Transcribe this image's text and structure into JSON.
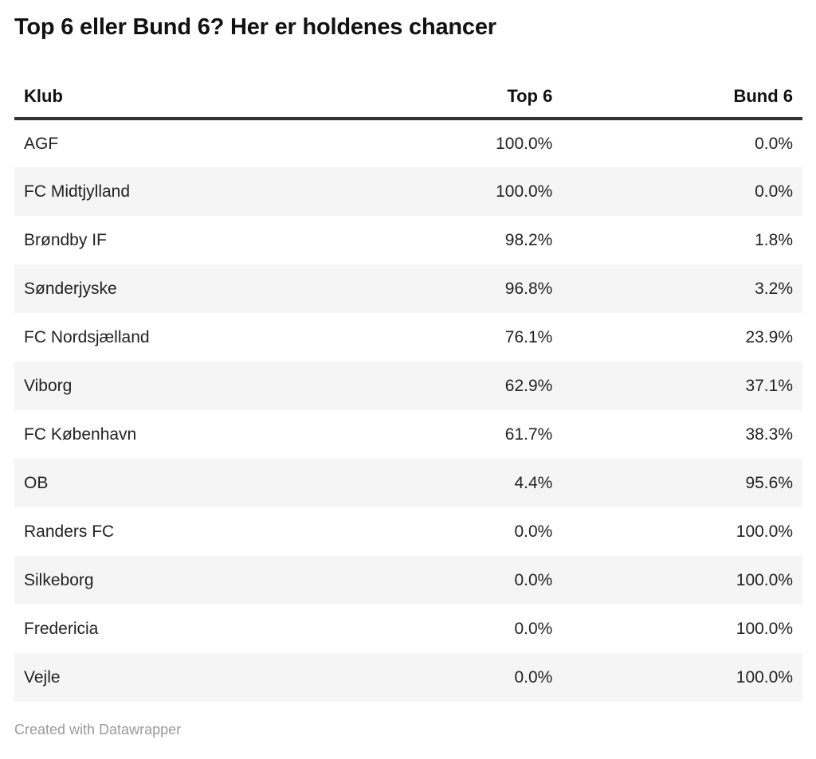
{
  "title": "Top 6 eller Bund 6? Her er holdenes chancer",
  "table": {
    "columns": [
      "Klub",
      "Top 6",
      "Bund 6"
    ],
    "rows": [
      {
        "club": "AGF",
        "top6": "100.0%",
        "bund6": "0.0%"
      },
      {
        "club": "FC Midtjylland",
        "top6": "100.0%",
        "bund6": "0.0%"
      },
      {
        "club": "Brøndby IF",
        "top6": "98.2%",
        "bund6": "1.8%"
      },
      {
        "club": "Sønderjyske",
        "top6": "96.8%",
        "bund6": "3.2%"
      },
      {
        "club": "FC Nordsjælland",
        "top6": "76.1%",
        "bund6": "23.9%"
      },
      {
        "club": "Viborg",
        "top6": "62.9%",
        "bund6": "37.1%"
      },
      {
        "club": "FC København",
        "top6": "61.7%",
        "bund6": "38.3%"
      },
      {
        "club": "OB",
        "top6": "4.4%",
        "bund6": "95.6%"
      },
      {
        "club": "Randers FC",
        "top6": "0.0%",
        "bund6": "100.0%"
      },
      {
        "club": "Silkeborg",
        "top6": "0.0%",
        "bund6": "100.0%"
      },
      {
        "club": "Fredericia",
        "top6": "0.0%",
        "bund6": "100.0%"
      },
      {
        "club": "Vejle",
        "top6": "0.0%",
        "bund6": "100.0%"
      }
    ]
  },
  "footer": {
    "attribution": "Created with Datawrapper"
  },
  "colors": {
    "header_rule": "#333333",
    "row_stripe": "#f5f5f5",
    "body_text": "#222222",
    "title_text": "#111111",
    "footer_text": "#9a9a9a"
  },
  "chart_data": {
    "type": "table",
    "title": "Top 6 eller Bund 6? Her er holdenes chancer",
    "columns": [
      "Klub",
      "Top 6",
      "Bund 6"
    ],
    "rows": [
      [
        "AGF",
        "100.0%",
        "0.0%"
      ],
      [
        "FC Midtjylland",
        "100.0%",
        "0.0%"
      ],
      [
        "Brøndby IF",
        "98.2%",
        "1.8%"
      ],
      [
        "Sønderjyske",
        "96.8%",
        "3.2%"
      ],
      [
        "FC Nordsjælland",
        "76.1%",
        "23.9%"
      ],
      [
        "Viborg",
        "62.9%",
        "37.1%"
      ],
      [
        "FC København",
        "61.7%",
        "38.3%"
      ],
      [
        "OB",
        "4.4%",
        "95.6%"
      ],
      [
        "Randers FC",
        "0.0%",
        "100.0%"
      ],
      [
        "Silkeborg",
        "0.0%",
        "100.0%"
      ],
      [
        "Fredericia",
        "0.0%",
        "100.0%"
      ],
      [
        "Vejle",
        "0.0%",
        "100.0%"
      ]
    ],
    "layout_hints": {
      "value_alignment": "right",
      "zebra_striping": true,
      "attribution": "Created with Datawrapper"
    }
  }
}
